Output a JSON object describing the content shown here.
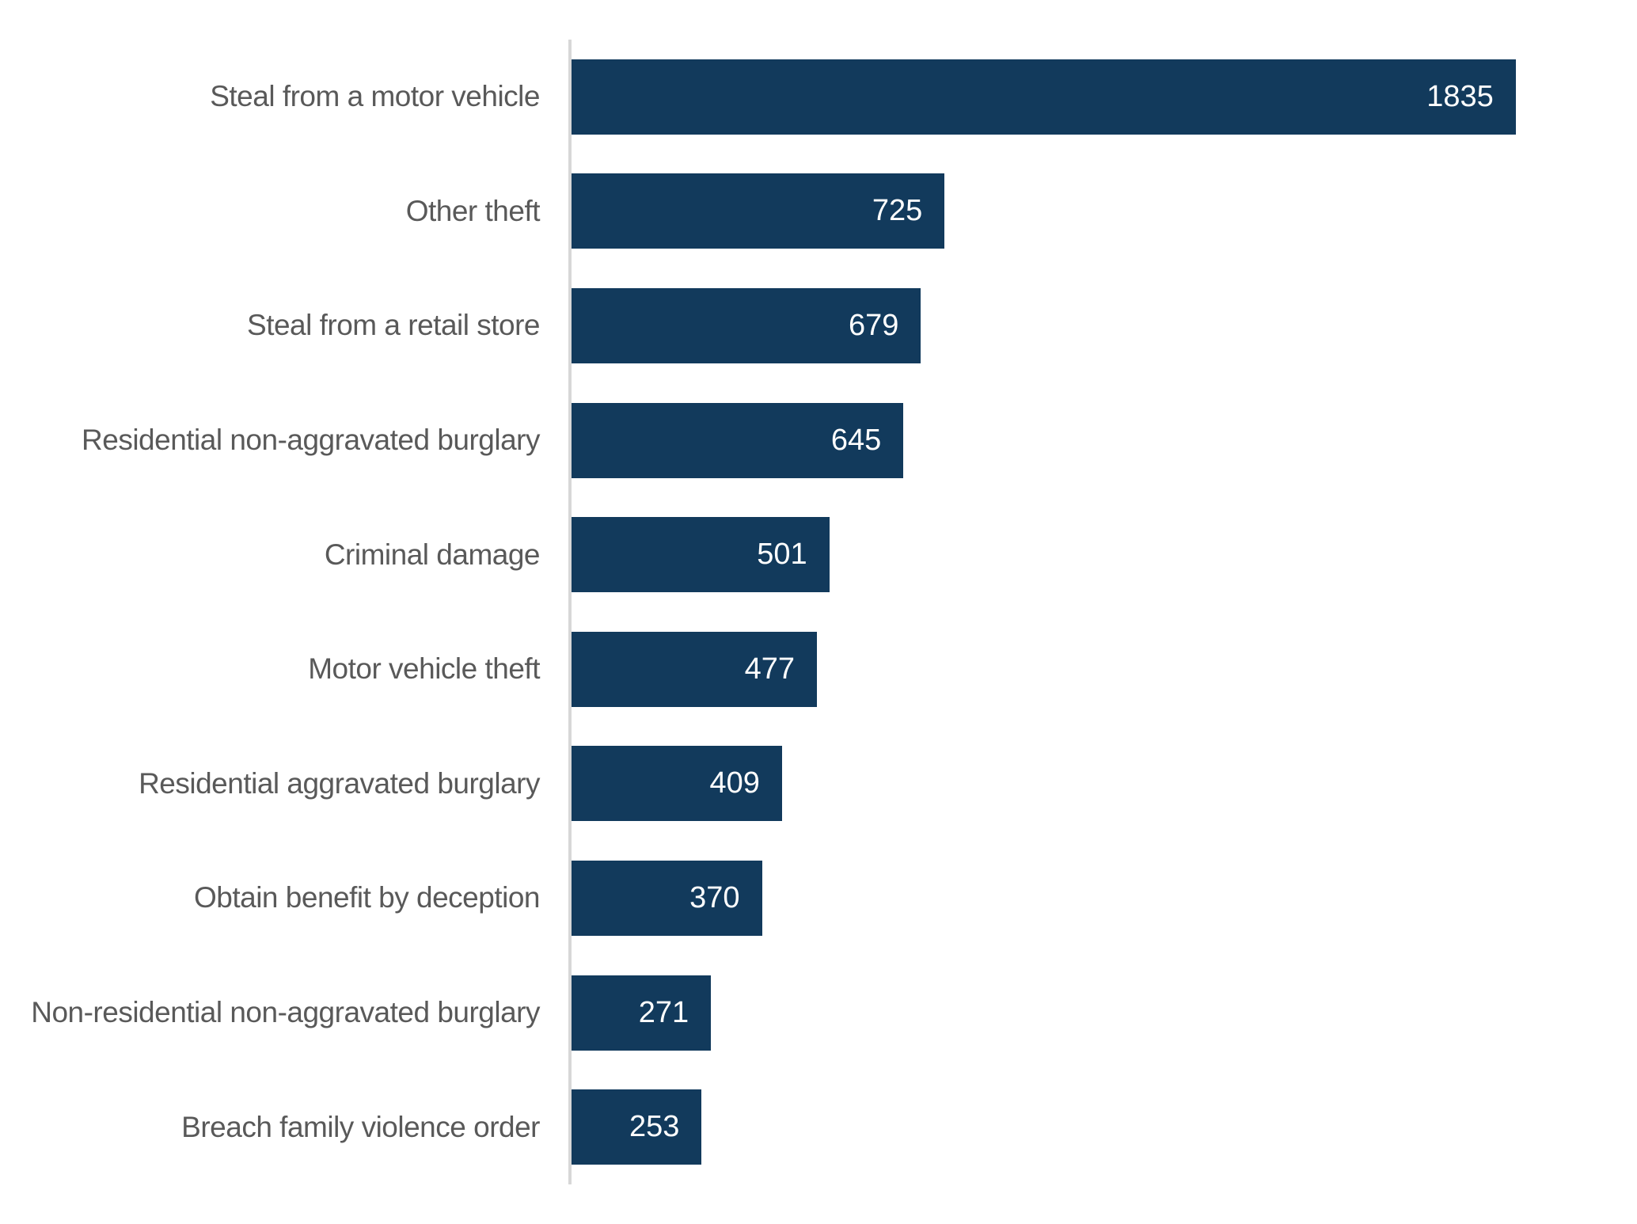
{
  "chart_data": {
    "type": "bar",
    "orientation": "horizontal",
    "title": "",
    "xlabel": "",
    "ylabel": "",
    "categories": [
      "Steal from a motor vehicle",
      "Other theft",
      "Steal from a retail store",
      "Residential non-aggravated burglary",
      "Criminal damage",
      "Motor vehicle theft",
      "Residential aggravated burglary",
      "Obtain benefit by deception",
      "Non-residential non-aggravated burglary",
      "Breach family violence order"
    ],
    "values": [
      1835,
      725,
      679,
      645,
      501,
      477,
      409,
      370,
      271,
      253
    ],
    "xlim": [
      0,
      2000
    ],
    "grid": false,
    "legend": false,
    "value_labels": "inside-end",
    "colors": {
      "bar": "#123a5c",
      "category_label": "#595959",
      "value_label": "#ffffff",
      "axis_line": "#d7d7d7",
      "background": "#ffffff"
    }
  }
}
